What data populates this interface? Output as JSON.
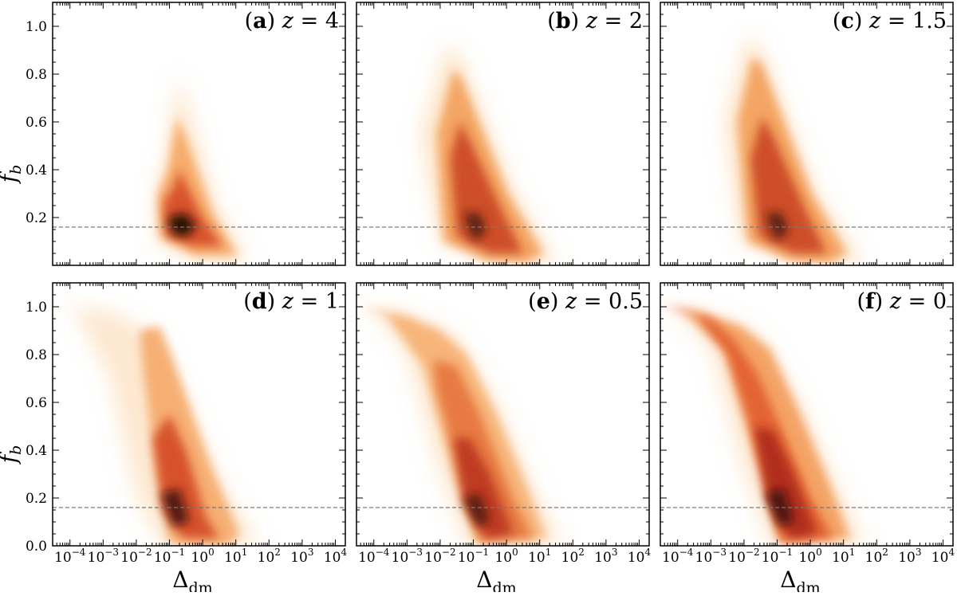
{
  "figure": {
    "ylabel": "f_b",
    "xlabel": "Δ_dm",
    "reference_line_value": 0.16
  },
  "chart_data": [
    {
      "type": "heatmap",
      "panel": "a",
      "title": "(a) z = 4",
      "redshift": 4,
      "xscale": "log",
      "xlim": [
        3e-05,
        20000.0
      ],
      "ylim": [
        0,
        1.1
      ],
      "xticks": [
        "10^-4",
        "10^-3",
        "10^-2",
        "10^-1",
        "10^0",
        "10^1",
        "10^2",
        "10^3",
        "10^4"
      ],
      "yticks": [
        "0.2",
        "0.4",
        "0.6",
        "0.8",
        "1.0"
      ],
      "peak": {
        "x": 0.2,
        "y": 0.16
      },
      "reference_line": 0.16
    },
    {
      "type": "heatmap",
      "panel": "b",
      "title": "(b) z = 2",
      "redshift": 2,
      "xscale": "log",
      "xlim": [
        3e-05,
        20000.0
      ],
      "ylim": [
        0,
        1.1
      ],
      "xticks": [
        "10^-4",
        "10^-3",
        "10^-2",
        "10^-1",
        "10^0",
        "10^1",
        "10^2",
        "10^3",
        "10^4"
      ],
      "yticks": [
        "0.2",
        "0.4",
        "0.6",
        "0.8",
        "1.0"
      ],
      "peak": {
        "x": 0.1,
        "y": 0.17
      },
      "reference_line": 0.16
    },
    {
      "type": "heatmap",
      "panel": "c",
      "title": "(c) z = 1.5",
      "redshift": 1.5,
      "xscale": "log",
      "xlim": [
        3e-05,
        20000.0
      ],
      "ylim": [
        0,
        1.1
      ],
      "xticks": [
        "10^-4",
        "10^-3",
        "10^-2",
        "10^-1",
        "10^0",
        "10^1",
        "10^2",
        "10^3",
        "10^4"
      ],
      "yticks": [
        "0.2",
        "0.4",
        "0.6",
        "0.8",
        "1.0"
      ],
      "peak": {
        "x": 0.1,
        "y": 0.16
      },
      "reference_line": 0.16
    },
    {
      "type": "heatmap",
      "panel": "d",
      "title": "(d) z = 1",
      "redshift": 1,
      "xscale": "log",
      "xlim": [
        3e-05,
        20000.0
      ],
      "ylim": [
        0,
        1.1
      ],
      "xticks": [
        "10^-4",
        "10^-3",
        "10^-2",
        "10^-1",
        "10^0",
        "10^1",
        "10^2",
        "10^3",
        "10^4"
      ],
      "yticks": [
        "0.0",
        "0.2",
        "0.4",
        "0.6",
        "0.8",
        "1.0"
      ],
      "peak": {
        "x": 0.1,
        "y": 0.15
      },
      "reference_line": 0.16
    },
    {
      "type": "heatmap",
      "panel": "e",
      "title": "(e) z = 0.5",
      "redshift": 0.5,
      "xscale": "log",
      "xlim": [
        3e-05,
        20000.0
      ],
      "ylim": [
        0,
        1.1
      ],
      "xticks": [
        "10^-4",
        "10^-3",
        "10^-2",
        "10^-1",
        "10^0",
        "10^1",
        "10^2",
        "10^3",
        "10^4"
      ],
      "yticks": [
        "0.0",
        "0.2",
        "0.4",
        "0.6",
        "0.8",
        "1.0"
      ],
      "peak": {
        "x": 0.1,
        "y": 0.15
      },
      "reference_line": 0.16
    },
    {
      "type": "heatmap",
      "panel": "f",
      "title": "(f) z = 0",
      "redshift": 0,
      "xscale": "log",
      "xlim": [
        3e-05,
        20000.0
      ],
      "ylim": [
        0,
        1.1
      ],
      "xticks": [
        "10^-4",
        "10^-3",
        "10^-2",
        "10^-1",
        "10^0",
        "10^1",
        "10^2",
        "10^3",
        "10^4"
      ],
      "yticks": [
        "0.0",
        "0.2",
        "0.4",
        "0.6",
        "0.8",
        "1.0"
      ],
      "peak": {
        "x": 0.1,
        "y": 0.15
      },
      "reference_line": 0.16
    }
  ]
}
